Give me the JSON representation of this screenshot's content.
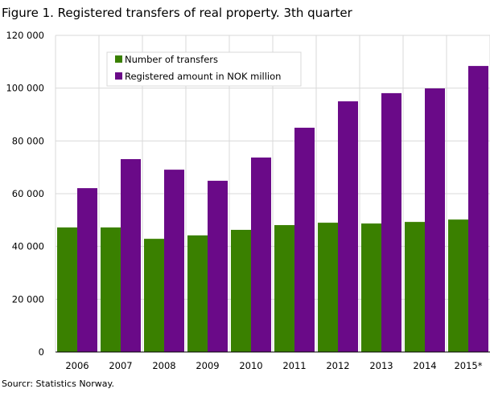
{
  "chart_data": {
    "type": "bar",
    "title": "Figure 1. Registered transfers of real property. 3th quarter",
    "source": "Sourcr: Statistics Norway.",
    "categories": [
      "2006",
      "2007",
      "2008",
      "2009",
      "2010",
      "2011",
      "2012",
      "2013",
      "2014",
      "2015*"
    ],
    "series": [
      {
        "name": "Number of transfers",
        "color": "#3a8000",
        "values": [
          47200,
          47200,
          42900,
          44200,
          46300,
          48100,
          49000,
          48700,
          49300,
          50200
        ]
      },
      {
        "name": "Registered amount in NOK million",
        "color": "#6a0a88",
        "values": [
          62100,
          73100,
          69100,
          64900,
          73700,
          85000,
          95000,
          98100,
          99900,
          108400
        ]
      }
    ],
    "ylim": [
      0,
      120000
    ],
    "yticks": [
      0,
      20000,
      40000,
      60000,
      80000,
      100000,
      120000
    ],
    "ytick_labels": [
      "0",
      "20 000",
      "40 000",
      "60 000",
      "80 000",
      "100 000",
      "120 000"
    ],
    "grid": true,
    "legend": "top-left"
  }
}
